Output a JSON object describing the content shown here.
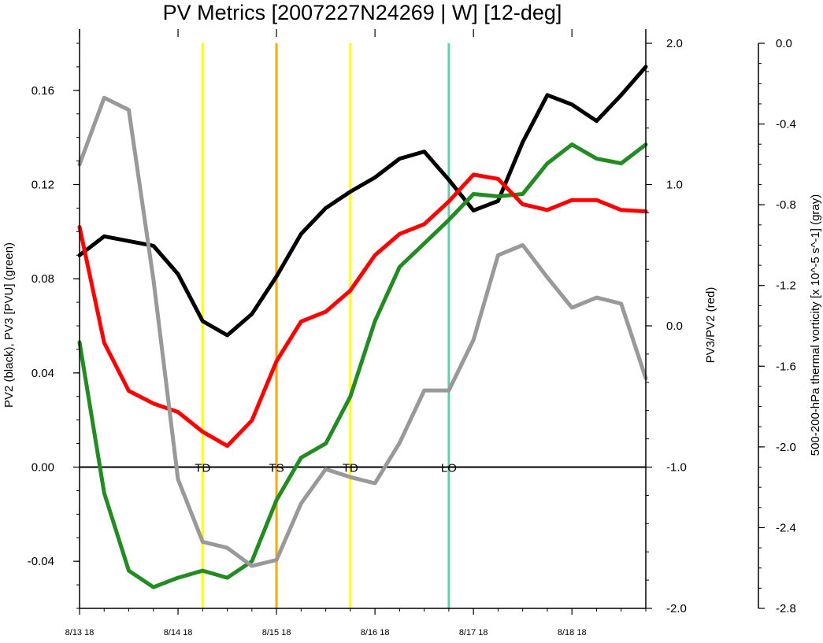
{
  "chart_data": {
    "type": "line",
    "title": "PV Metrics [2007227N24269 | W] [12-deg]",
    "x": {
      "range": [
        0,
        23
      ],
      "tick_labels": [
        "8/13 18",
        "8/14 18",
        "8/15 18",
        "8/16 18",
        "8/17 18",
        "8/18 18"
      ],
      "tick_values": [
        0,
        4,
        8,
        12,
        16,
        20
      ]
    },
    "left_axis": {
      "label": "PV2 (black), PV3 [PVU] (green)",
      "ylim": [
        -0.06,
        0.18
      ],
      "tick_labels": [
        "-0.04",
        "0.00",
        "0.04",
        "0.08",
        "0.12",
        "0.16"
      ],
      "tick_values": [
        -0.04,
        0.0,
        0.04,
        0.08,
        0.12,
        0.16
      ]
    },
    "right_axis": {
      "label": "PV3/PV2 (red)",
      "ylim": [
        -2.0,
        2.0
      ],
      "tick_labels": [
        "-2.0",
        "-1.0",
        "0.0",
        "1.0",
        "2.0"
      ],
      "tick_values": [
        -2.0,
        -1.0,
        0.0,
        1.0,
        2.0
      ]
    },
    "far_right_axis": {
      "label": "500-200-hPa thermal vorticity [x 10^-5 s^-1] (gray)",
      "ylim": [
        -2.8,
        0.0
      ],
      "tick_labels": [
        "-2.8",
        "-2.4",
        "-2.0",
        "-1.6",
        "-1.2",
        "-0.8",
        "-0.4",
        "0.0"
      ],
      "tick_values": [
        -2.8,
        -2.4,
        -2.0,
        -1.6,
        -1.2,
        -0.8,
        -0.4,
        0.0
      ]
    },
    "series": [
      {
        "color": "#000000",
        "axis": "left",
        "x": [
          0,
          1,
          2,
          3,
          4,
          5,
          6,
          7,
          8,
          9,
          10,
          11,
          12,
          13,
          14,
          15,
          16,
          17,
          18,
          19,
          20,
          21,
          22,
          23
        ],
        "values": [
          0.09,
          0.098,
          0.096,
          0.094,
          0.082,
          0.062,
          0.056,
          0.065,
          0.081,
          0.099,
          0.11,
          0.117,
          0.123,
          0.131,
          0.134,
          0.122,
          0.109,
          0.113,
          0.138,
          0.158,
          0.154,
          0.147,
          0.158,
          0.17
        ]
      },
      {
        "color": "#228b22",
        "axis": "left",
        "x": [
          0,
          1,
          2,
          3,
          4,
          5,
          6,
          7,
          8,
          9,
          10,
          11,
          12,
          13,
          14,
          15,
          16,
          17,
          18,
          19,
          20,
          21,
          22,
          23
        ],
        "values": [
          0.053,
          -0.011,
          -0.044,
          -0.051,
          -0.047,
          -0.044,
          -0.047,
          -0.04,
          -0.014,
          0.004,
          0.01,
          0.03,
          0.062,
          0.085,
          0.095,
          0.105,
          0.116,
          0.115,
          0.116,
          0.129,
          0.137,
          0.131,
          0.129,
          0.137
        ]
      },
      {
        "color": "#ff0000",
        "axis": "right",
        "x": [
          0,
          1,
          2,
          3,
          4,
          5,
          6,
          7,
          8,
          9,
          10,
          11,
          12,
          13,
          14,
          15,
          16,
          17,
          18,
          19,
          20,
          21,
          22,
          23
        ],
        "values": [
          0.7,
          -0.12,
          -0.46,
          -0.55,
          -0.61,
          -0.75,
          -0.85,
          -0.67,
          -0.25,
          0.03,
          0.1,
          0.25,
          0.5,
          0.65,
          0.72,
          0.88,
          1.07,
          1.04,
          0.86,
          0.82,
          0.89,
          0.89,
          0.82,
          0.81
        ]
      },
      {
        "color": "#999999",
        "axis": "far_right",
        "x": [
          0,
          1,
          2,
          3,
          4,
          5,
          6,
          7,
          8,
          9,
          10,
          11,
          12,
          13,
          14,
          15,
          16,
          17,
          18,
          19,
          20,
          21,
          22,
          23
        ],
        "values": [
          -0.6,
          -0.27,
          -0.33,
          -1.17,
          -2.16,
          -2.47,
          -2.5,
          -2.59,
          -2.56,
          -2.28,
          -2.11,
          -2.15,
          -2.18,
          -1.98,
          -1.72,
          -1.72,
          -1.47,
          -1.05,
          -1.0,
          -1.16,
          -1.31,
          -1.26,
          -1.29,
          -1.66
        ]
      }
    ],
    "zero_line": {
      "axis": "left",
      "value": 0.0,
      "color": "#000000"
    },
    "stage_markers": [
      {
        "label": "TD",
        "x": 5,
        "color": "#ffff00"
      },
      {
        "label": "TS",
        "x": 8,
        "color": "#ffa500"
      },
      {
        "label": "TD",
        "x": 11,
        "color": "#ffff00"
      },
      {
        "label": "LO",
        "x": 15,
        "color": "#66cdaa"
      }
    ],
    "grid": false,
    "legend": "none"
  }
}
